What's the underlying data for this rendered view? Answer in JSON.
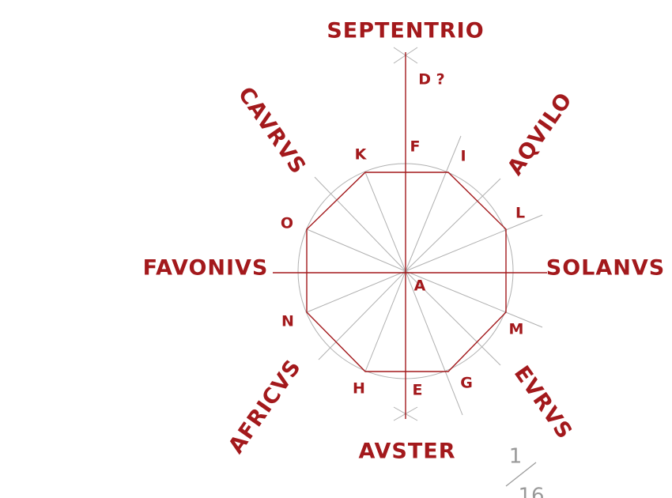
{
  "winds": [
    "SEPTENTRIO",
    "AQVILO",
    "SOLANVS",
    "EVRVS",
    "AVSTER",
    "AFRICVS",
    "FAVONIVS",
    "CAVRVS"
  ],
  "points": [
    "D ?",
    "F",
    "I",
    "K",
    "L",
    "O",
    "A",
    "N",
    "M",
    "G",
    "H",
    "E"
  ],
  "fraction": {
    "numerator": "1",
    "denominator": "16"
  }
}
